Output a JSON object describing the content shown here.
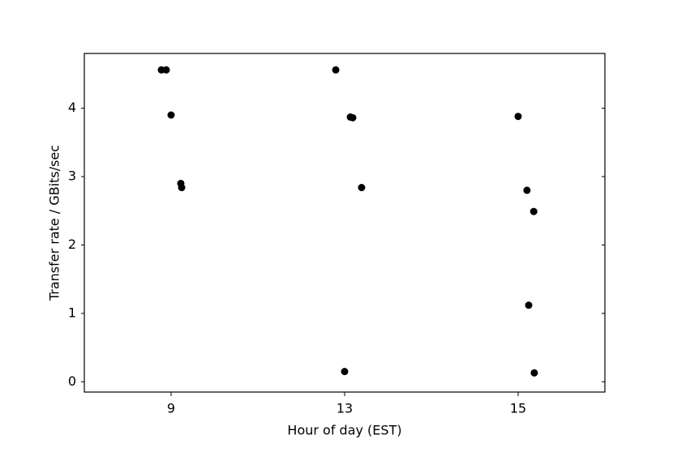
{
  "chart_data": {
    "type": "scatter",
    "xlabel": "Hour of day (EST)",
    "ylabel": "Transfer rate / GBits/sec",
    "x": [
      -0.056,
      -0.028,
      0,
      0.056,
      0.061,
      0.949,
      1.033,
      1.047,
      1.098,
      1.0,
      2.0,
      2.051,
      2.09,
      2.061,
      2.093
    ],
    "values": [
      4.56,
      4.56,
      3.9,
      2.9,
      2.84,
      4.56,
      3.87,
      3.86,
      2.84,
      0.15,
      3.88,
      2.8,
      2.49,
      1.12,
      0.13
    ],
    "color": "#000000",
    "xlim": [
      -0.5,
      2.5
    ],
    "xticks": [
      {
        "value": 0,
        "label": "9"
      },
      {
        "value": 1,
        "label": "13"
      },
      {
        "value": 2,
        "label": "15"
      }
    ],
    "ylim": [
      -0.15,
      4.8
    ],
    "yticks": [
      0,
      1,
      2,
      3,
      4
    ],
    "grid": false
  }
}
